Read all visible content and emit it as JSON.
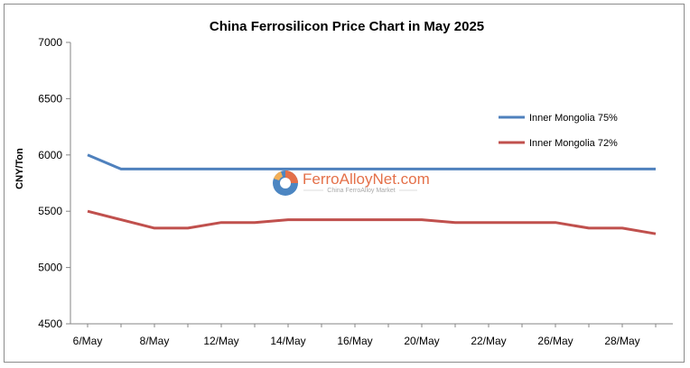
{
  "chart_data": {
    "type": "line",
    "title": "China Ferrosilicon Price Chart in May 2025",
    "ylabel": "CNY/Ton",
    "xlabel": "",
    "ylim": [
      4500,
      7000
    ],
    "yticks": [
      4500,
      5000,
      5500,
      6000,
      6500,
      7000
    ],
    "categories": [
      "6/May",
      "7/May",
      "8/May",
      "9/May",
      "12/May",
      "13/May",
      "14/May",
      "15/May",
      "16/May",
      "19/May",
      "20/May",
      "21/May",
      "22/May",
      "23/May",
      "26/May",
      "27/May",
      "28/May",
      "29/May"
    ],
    "tick_labels": [
      "6/May",
      "",
      "8/May",
      "",
      "12/May",
      "",
      "14/May",
      "",
      "16/May",
      "",
      "20/May",
      "",
      "22/May",
      "",
      "26/May",
      "",
      "28/May",
      ""
    ],
    "series": [
      {
        "name": "Inner Mongolia 75%",
        "color": "#4f81bd",
        "values": [
          6000,
          5875,
          5875,
          5875,
          5875,
          5875,
          5875,
          5875,
          5875,
          5875,
          5875,
          5875,
          5875,
          5875,
          5875,
          5875,
          5875,
          5875
        ]
      },
      {
        "name": "Inner Mongolia 72%",
        "color": "#c0504d",
        "values": [
          5500,
          5425,
          5350,
          5350,
          5400,
          5400,
          5425,
          5425,
          5425,
          5425,
          5425,
          5400,
          5400,
          5400,
          5400,
          5350,
          5350,
          5300
        ]
      }
    ],
    "legend_position": "right",
    "grid": false
  },
  "watermark": {
    "brand": "FerroAlloyNet.com",
    "tagline": "China FerroAlloy Market"
  }
}
